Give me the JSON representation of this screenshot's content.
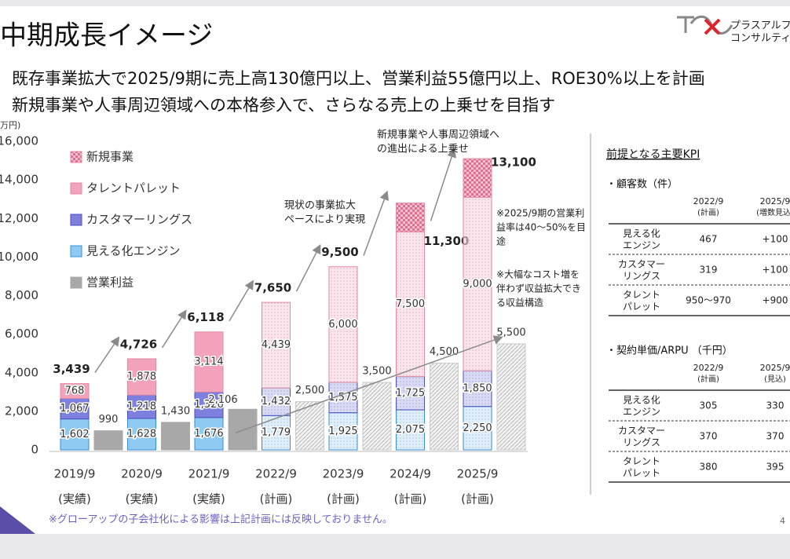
{
  "header": {
    "title": "中期成長イメージ",
    "logo_lines": [
      "プラスアルフ",
      "コンサルティ"
    ],
    "subtitle_lines": [
      "既存事業拡大で2025/9期に売上高130億円以上、営業利益55億円以上、ROE30%以上を計画",
      "新規事業や人事周辺領域への本格参入で、さらなる売上の上乗せを目指す"
    ]
  },
  "chart_data": {
    "type": "bar",
    "unit_label": "万円)",
    "categories": [
      "2019/9",
      "2020/9",
      "2021/9",
      "2022/9",
      "2023/9",
      "2024/9",
      "2025/9"
    ],
    "category_notes": [
      "(実績)",
      "(実績)",
      "(実績)",
      "(計画)",
      "(計画)",
      "(計画)",
      "(計画)"
    ],
    "projected": [
      false,
      false,
      false,
      true,
      true,
      true,
      true
    ],
    "ylim": [
      0,
      16000
    ],
    "yticks": [
      0,
      {
        "value": 2000,
        "label": "2,000"
      },
      {
        "value": 4000,
        "label": "4,000"
      },
      {
        "value": 6000,
        "label": "6,000"
      },
      {
        "value": 8000,
        "label": "8,000"
      },
      {
        "value": 10000,
        "label": "10,000"
      },
      {
        "value": 12000,
        "label": "12,000"
      },
      {
        "value": 14000,
        "label": "14,000"
      },
      {
        "value": 16000,
        "label": "16,000"
      }
    ],
    "series": [
      {
        "name": "見える化エンジン",
        "color": "#8fcaf2",
        "values": [
          1602,
          1628,
          1676,
          1779,
          1925,
          2075,
          2250
        ],
        "value_labels": [
          "1,602",
          "1,628",
          "1,676",
          "1,779",
          "1,925",
          "2,075",
          "2,250"
        ]
      },
      {
        "name": "カスタマーリングス",
        "color": "#7d80dc",
        "values": [
          1067,
          1218,
          1326,
          1432,
          1575,
          1725,
          1850
        ],
        "value_labels": [
          "1,067",
          "1,218",
          "1,326",
          "1,432",
          "1,575",
          "1,725",
          "1,850"
        ]
      },
      {
        "name": "タレントパレット",
        "color": "#f2a3bb",
        "values": [
          768,
          1878,
          3114,
          4439,
          6000,
          7500,
          9000
        ],
        "value_labels": [
          "768",
          "1,878",
          "3,114",
          "4,439",
          "6,000",
          "7,500",
          "9,000"
        ]
      },
      {
        "name": "新規事業",
        "color": "#e57a98",
        "values": [
          null,
          null,
          null,
          null,
          null,
          1500,
          2000
        ]
      },
      {
        "name": "営業利益",
        "color": "#a8a8a8",
        "values": [
          990,
          1430,
          2106,
          2500,
          3500,
          4500,
          5500
        ],
        "value_labels": [
          "990",
          "1,430",
          "2,106",
          "2,500",
          "3,500",
          "4,500",
          "5,500"
        ],
        "separate": true
      }
    ],
    "totals": [
      3439,
      4726,
      6118,
      7650,
      9500,
      11300,
      13100
    ],
    "total_labels": [
      "3,439",
      "4,726",
      "6,118",
      "7,650",
      "9,500",
      "11,300",
      "13,100"
    ],
    "annotations": [
      {
        "lines": [
          "新規事業や人事周辺領域へ",
          "の進出による上乗せ"
        ]
      },
      {
        "lines": [
          "現状の事業拡大",
          "ペースにより実現"
        ]
      },
      {
        "lines": [
          "※2025/9期の営業利",
          "益率は40～50%を目",
          "途"
        ]
      },
      {
        "lines": [
          "※大幅なコスト増を",
          "伴わず収益拡大でき",
          "る収益構造"
        ]
      }
    ],
    "footnote": "※グローアップの子会社化による影響は上記計画には反映しておりません。"
  },
  "kpi": {
    "title": "前提となる主要KPI",
    "tables": [
      {
        "heading": "・顧客数（件）",
        "columns": [
          [
            "2022/9",
            "(計画)"
          ],
          [
            "2025/9",
            "(増数見込)"
          ]
        ],
        "rows": [
          {
            "label": [
              "見える化",
              "エンジン"
            ],
            "cells": [
              "467",
              "+100"
            ]
          },
          {
            "label": [
              "カスタマー",
              "リングス"
            ],
            "cells": [
              "319",
              "+100"
            ]
          },
          {
            "label": [
              "タレント",
              "パレット"
            ],
            "cells": [
              "950～970",
              "+900"
            ]
          }
        ]
      },
      {
        "heading": "・契約単価/ARPU （千円）",
        "columns": [
          [
            "2022/9",
            "(計画)"
          ],
          [
            "2025/9",
            "(見込)"
          ]
        ],
        "rows": [
          {
            "label": [
              "見える化",
              "エンジン"
            ],
            "cells": [
              "305",
              "330"
            ]
          },
          {
            "label": [
              "カスタマー",
              "リングス"
            ],
            "cells": [
              "370",
              "370"
            ]
          },
          {
            "label": [
              "タレント",
              "パレット"
            ],
            "cells": [
              "380",
              "395"
            ]
          }
        ]
      }
    ]
  },
  "page_number": "4"
}
